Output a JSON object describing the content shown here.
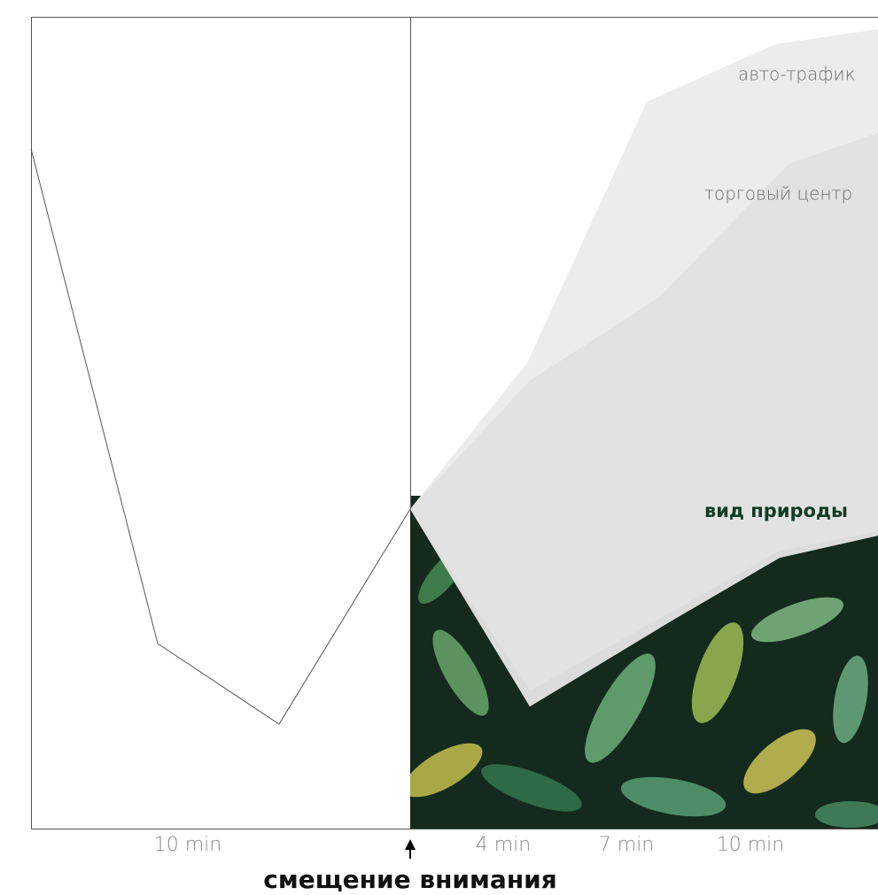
{
  "labels": {
    "traffic": "авто-трафик",
    "mall": "торговый центр",
    "nature": "вид природы"
  },
  "x_labels": [
    "10 min",
    "4 min",
    "7 min",
    "10 min"
  ],
  "annotation": "смещение внимания"
}
